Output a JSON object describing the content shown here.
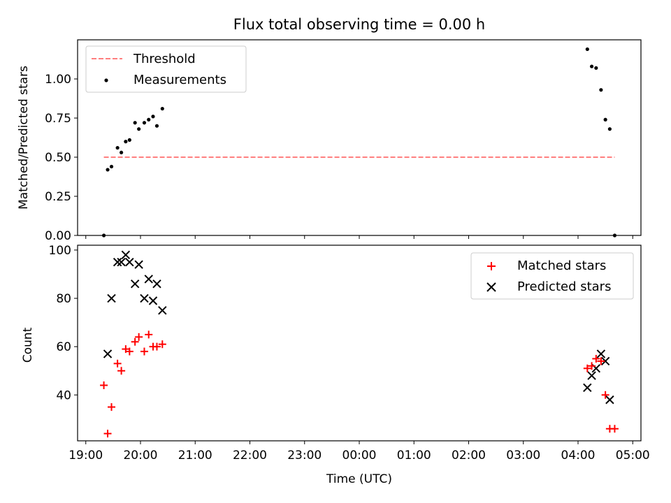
{
  "chart_data": [
    {
      "type": "scatter",
      "title": "Flux total observing time = 0.00 h",
      "xlabel": "",
      "ylabel": "Matched/Predicted stars",
      "xlim_hours": [
        18.85,
        29.15
      ],
      "ylim": [
        0,
        1.25
      ],
      "yticks": [
        0.0,
        0.25,
        0.5,
        0.75,
        1.0
      ],
      "ytick_labels": [
        "0.00",
        "0.25",
        "0.50",
        "0.75",
        "1.00"
      ],
      "grid": false,
      "legend_placement": "top-left",
      "series": [
        {
          "name": "Threshold",
          "kind": "line",
          "style": "dashed",
          "color": "#ff7f7f",
          "x": [
            19.33,
            28.67
          ],
          "y": [
            0.5,
            0.5
          ]
        },
        {
          "name": "Measurements",
          "kind": "scatter",
          "marker": "dot",
          "color": "#000000",
          "x": [
            19.33,
            19.4,
            19.47,
            19.58,
            19.65,
            19.73,
            19.8,
            19.9,
            19.97,
            20.07,
            20.15,
            20.23,
            20.3,
            20.4,
            28.17,
            28.25,
            28.33,
            28.42,
            28.5,
            28.58,
            28.67
          ],
          "y": [
            0.0,
            0.42,
            0.44,
            0.56,
            0.53,
            0.6,
            0.61,
            0.72,
            0.68,
            0.72,
            0.74,
            0.76,
            0.7,
            0.81,
            1.19,
            1.08,
            1.07,
            0.93,
            0.74,
            0.68,
            0.0
          ]
        }
      ]
    },
    {
      "type": "scatter",
      "title": "",
      "xlabel": "Time (UTC)",
      "ylabel": "Count",
      "xlim_hours": [
        18.85,
        29.15
      ],
      "ylim": [
        21,
        102
      ],
      "yticks": [
        40,
        60,
        80,
        100
      ],
      "ytick_labels": [
        "40",
        "60",
        "80",
        "100"
      ],
      "xticks_hours": [
        19,
        20,
        21,
        22,
        23,
        24,
        25,
        26,
        27,
        28,
        29
      ],
      "xtick_labels": [
        "19:00",
        "20:00",
        "21:00",
        "22:00",
        "23:00",
        "00:00",
        "01:00",
        "02:00",
        "03:00",
        "04:00",
        "05:00"
      ],
      "grid": false,
      "legend_placement": "top-right",
      "series": [
        {
          "name": "Matched stars",
          "kind": "scatter",
          "marker": "plus",
          "color": "#ff0000",
          "x": [
            19.33,
            19.4,
            19.47,
            19.58,
            19.65,
            19.73,
            19.8,
            19.9,
            19.97,
            20.07,
            20.15,
            20.23,
            20.3,
            20.4,
            28.17,
            28.25,
            28.33,
            28.42,
            28.5,
            28.58,
            28.67
          ],
          "y": [
            44,
            24,
            35,
            53,
            50,
            59,
            58,
            62,
            64,
            58,
            65,
            60,
            60,
            61,
            51,
            52,
            55,
            54,
            40,
            26,
            26
          ]
        },
        {
          "name": "Predicted stars",
          "kind": "scatter",
          "marker": "x",
          "color": "#000000",
          "x": [
            19.4,
            19.47,
            19.58,
            19.65,
            19.73,
            19.8,
            19.9,
            19.97,
            20.07,
            20.15,
            20.23,
            20.3,
            20.4,
            28.17,
            28.25,
            28.33,
            28.42,
            28.5,
            28.58
          ],
          "y": [
            57,
            80,
            95,
            95,
            98,
            95,
            86,
            94,
            80,
            88,
            79,
            86,
            75,
            43,
            48,
            51,
            57,
            54,
            38
          ]
        }
      ]
    }
  ]
}
